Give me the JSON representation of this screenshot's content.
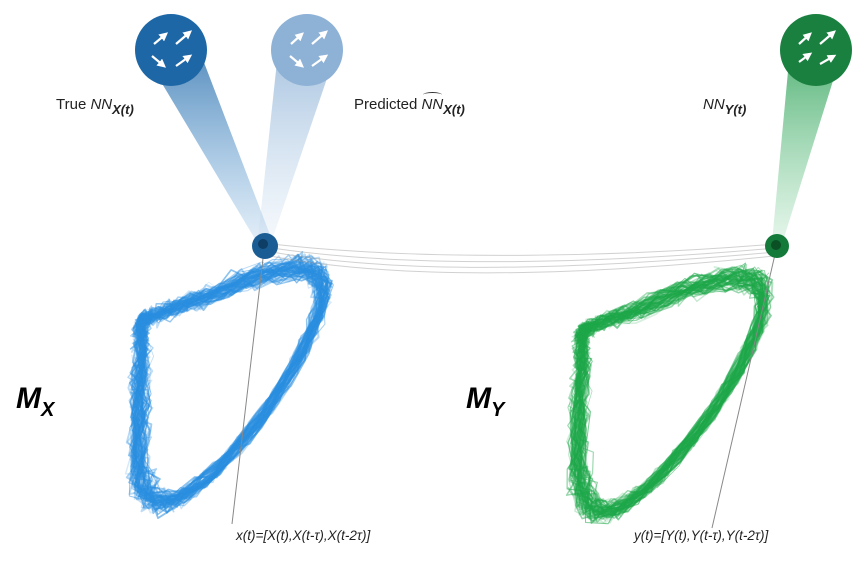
{
  "labels": {
    "true_prefix": "True ",
    "true_nn": "NN",
    "true_sub": "X(t)",
    "pred_prefix": "Predicted ",
    "pred_nn": "NN",
    "pred_sub": "X(t)",
    "nny_nn": "NN",
    "nny_sub": "Y(t)"
  },
  "manifolds": {
    "mx_main": "M",
    "mx_sub": "X",
    "my_main": "M",
    "my_sub": "Y"
  },
  "formulas": {
    "x": "x(t)=[X(t),X(t-τ),X(t-2τ)]",
    "y": "y(t)=[Y(t),Y(t-τ),Y(t-2τ)]"
  },
  "colors": {
    "blue": "#2b8fe0",
    "dark_blue": "#1a5d94",
    "light_blue": "#7fa7cf",
    "green": "#1ea84a",
    "dark_green": "#137a3a"
  },
  "icons": [
    "neighbor-arrows-icon"
  ]
}
